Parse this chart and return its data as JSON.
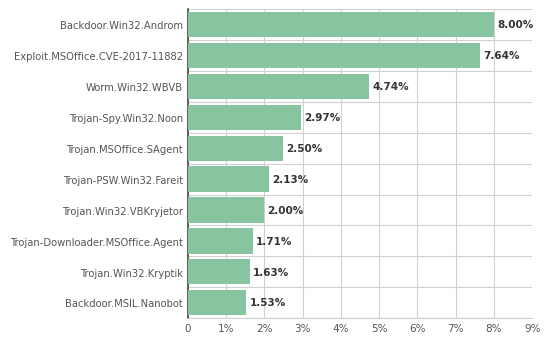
{
  "categories": [
    "Backdoor.MSIL.Nanobot",
    "Trojan.Win32.Kryptik",
    "Trojan-Downloader.MSOffice.Agent",
    "Trojan.Win32.VBKryjetor",
    "Trojan-PSW.Win32.Fareit",
    "Trojan.MSOffice.SAgent",
    "Trojan-Spy.Win32.Noon",
    "Worm.Win32.WBVB",
    "Exploit.MSOffice.CVE-2017-11882",
    "Backdoor.Win32.Androm"
  ],
  "values": [
    1.53,
    1.63,
    1.71,
    2.0,
    2.13,
    2.5,
    2.97,
    4.74,
    7.64,
    8.0
  ],
  "labels": [
    "1.53%",
    "1.63%",
    "1.71%",
    "2.00%",
    "2.13%",
    "2.50%",
    "2.97%",
    "4.74%",
    "7.64%",
    "8.00%"
  ],
  "bar_color": "#88c4a0",
  "background_color": "#ffffff",
  "grid_color": "#d0d0d0",
  "text_color": "#555555",
  "label_color": "#333333",
  "xlim": [
    0,
    9
  ],
  "xticks": [
    0,
    1,
    2,
    3,
    4,
    5,
    6,
    7,
    8,
    9
  ],
  "xtick_labels": [
    "0",
    "1%",
    "2%",
    "3%",
    "4%",
    "5%",
    "6%",
    "7%",
    "8%",
    "9%"
  ],
  "bar_height": 0.82,
  "label_fontsize": 7.2,
  "tick_fontsize": 7.5,
  "value_label_fontsize": 7.5
}
